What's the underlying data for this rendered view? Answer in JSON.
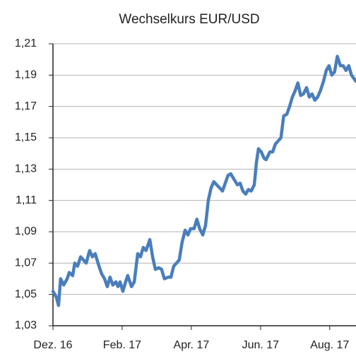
{
  "chart_data": {
    "type": "line",
    "title": "Wechselkurs EUR/USD",
    "x": [
      0,
      0.1,
      0.16,
      0.22,
      0.31,
      0.41,
      0.47,
      0.57,
      0.63,
      0.71,
      0.8,
      0.88,
      0.96,
      1.06,
      1.14,
      1.22,
      1.33,
      1.41,
      1.49,
      1.57,
      1.65,
      1.73,
      1.82,
      1.88,
      1.94,
      2.02,
      2.1,
      2.16,
      2.27,
      2.35,
      2.45,
      2.53,
      2.61,
      2.69,
      2.8,
      2.88,
      2.96,
      3.06,
      3.14,
      3.22,
      3.33,
      3.41,
      3.49,
      3.57,
      3.65,
      3.73,
      3.82,
      3.9,
      3.98,
      4.08,
      4.16,
      4.24,
      4.33,
      4.41,
      4.49,
      4.57,
      4.65,
      4.73,
      4.82,
      4.9,
      4.98,
      5.06,
      5.14,
      5.22,
      5.33,
      5.41,
      5.49,
      5.57,
      5.65,
      5.73,
      5.82,
      5.88,
      5.94,
      6.02,
      6.1,
      6.16,
      6.27,
      6.35,
      6.43,
      6.51,
      6.59,
      6.67,
      6.76,
      6.84,
      6.92,
      7.0,
      7.08,
      7.16,
      7.24,
      7.33,
      7.41,
      7.49,
      7.57,
      7.65,
      7.73,
      7.82,
      7.9,
      7.98,
      8.06,
      8.14,
      8.22,
      8.31,
      8.39,
      8.47,
      8.55,
      8.63,
      8.76
    ],
    "series": [
      {
        "name": "EUR/USD",
        "color": "#4a7ebb",
        "values": [
          1.052,
          1.048,
          1.043,
          1.06,
          1.056,
          1.06,
          1.064,
          1.062,
          1.07,
          1.068,
          1.074,
          1.072,
          1.07,
          1.078,
          1.074,
          1.076,
          1.068,
          1.063,
          1.06,
          1.055,
          1.061,
          1.056,
          1.058,
          1.055,
          1.058,
          1.052,
          1.058,
          1.062,
          1.055,
          1.058,
          1.076,
          1.074,
          1.08,
          1.078,
          1.085,
          1.074,
          1.066,
          1.067,
          1.066,
          1.06,
          1.061,
          1.061,
          1.068,
          1.07,
          1.072,
          1.083,
          1.091,
          1.088,
          1.092,
          1.092,
          1.098,
          1.092,
          1.088,
          1.094,
          1.11,
          1.118,
          1.122,
          1.12,
          1.118,
          1.116,
          1.121,
          1.126,
          1.127,
          1.124,
          1.12,
          1.121,
          1.116,
          1.114,
          1.117,
          1.116,
          1.12,
          1.134,
          1.143,
          1.141,
          1.137,
          1.136,
          1.141,
          1.141,
          1.146,
          1.148,
          1.15,
          1.164,
          1.165,
          1.17,
          1.176,
          1.18,
          1.185,
          1.177,
          1.178,
          1.182,
          1.176,
          1.178,
          1.174,
          1.176,
          1.18,
          1.186,
          1.193,
          1.196,
          1.19,
          1.192,
          1.202,
          1.196,
          1.196,
          1.193,
          1.196,
          1.19,
          1.186
        ]
      }
    ],
    "xlim": [
      0,
      8.76
    ],
    "xticks": [
      {
        "value": 0,
        "label": "Dez. 16"
      },
      {
        "value": 2,
        "label": "Feb. 17"
      },
      {
        "value": 4,
        "label": "Apr. 17"
      },
      {
        "value": 6,
        "label": "Jun. 17"
      },
      {
        "value": 8,
        "label": "Aug. 17"
      }
    ],
    "ylim": [
      1.03,
      1.21
    ],
    "yticks": [
      {
        "value": 1.03,
        "label": "1,03"
      },
      {
        "value": 1.05,
        "label": "1,05"
      },
      {
        "value": 1.07,
        "label": "1,07"
      },
      {
        "value": 1.09,
        "label": "1,09"
      },
      {
        "value": 1.11,
        "label": "1,11"
      },
      {
        "value": 1.13,
        "label": "1,13"
      },
      {
        "value": 1.15,
        "label": "1,15"
      },
      {
        "value": 1.17,
        "label": "1,17"
      },
      {
        "value": 1.19,
        "label": "1,19"
      },
      {
        "value": 1.21,
        "label": "1,21"
      }
    ],
    "grid": true
  }
}
